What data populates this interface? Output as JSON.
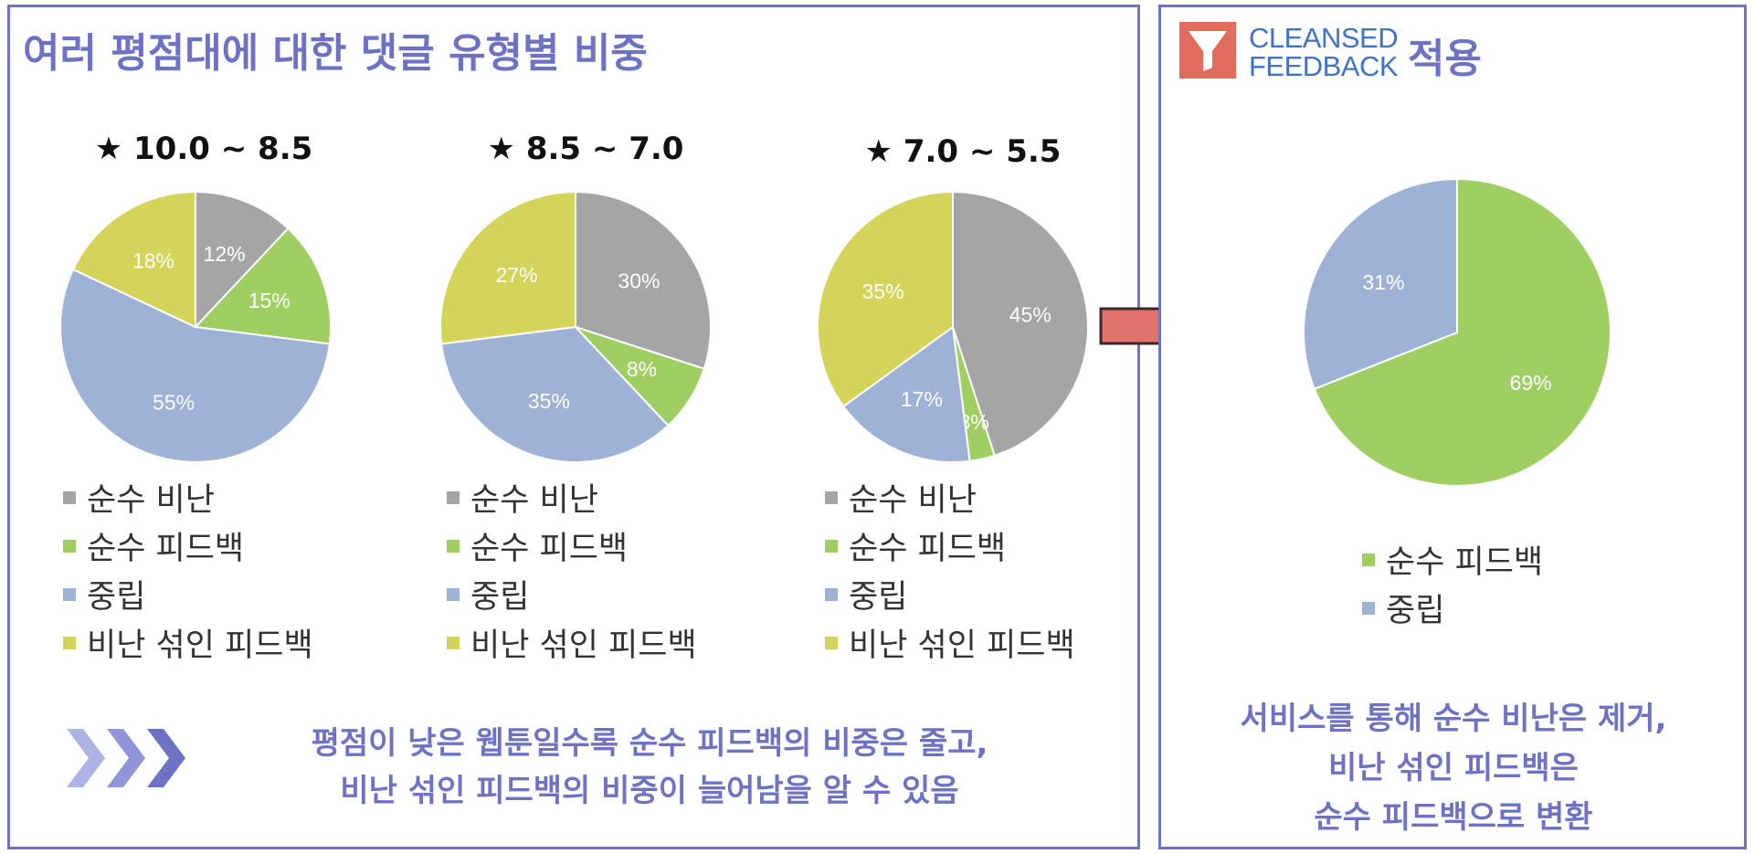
{
  "left_title": "여러 평점대에 대한 댓글 유형별 비중",
  "right_header": {
    "logo_line1": "CLEANSED",
    "logo_line2": "FEEDBACK",
    "title": "적용"
  },
  "colors": {
    "accent": "#6d72c3",
    "arrow": "#e0726a",
    "logo": "#e36b5d"
  },
  "icons": {
    "arrow": "right-arrow-icon",
    "chevrons": "chevron-triple-icon",
    "logo": "funnel-icon"
  },
  "legend_labels": [
    "순수 비난",
    "순수 피드백",
    "중립",
    "비난 섞인 피드백"
  ],
  "chart_data": [
    {
      "type": "pie",
      "title": "★ 10.0 ~ 8.5",
      "slices": [
        {
          "label": "순수 비난",
          "value": 12,
          "color": "#a5a5a5"
        },
        {
          "label": "순수 피드백",
          "value": 15,
          "color": "#9fcf63"
        },
        {
          "label": "중립",
          "value": 55,
          "color": "#9eb2d6"
        },
        {
          "label": "비난 섞인 피드백",
          "value": 18,
          "color": "#d4d35a"
        }
      ]
    },
    {
      "type": "pie",
      "title": "★ 8.5 ~ 7.0",
      "slices": [
        {
          "label": "순수 비난",
          "value": 30,
          "color": "#a5a5a5"
        },
        {
          "label": "순수 피드백",
          "value": 8,
          "color": "#9fcf63"
        },
        {
          "label": "중립",
          "value": 35,
          "color": "#9eb2d6"
        },
        {
          "label": "비난 섞인 피드백",
          "value": 27,
          "color": "#d4d35a"
        }
      ]
    },
    {
      "type": "pie",
      "title": "★ 7.0 ~ 5.5",
      "slices": [
        {
          "label": "순수 비난",
          "value": 45,
          "color": "#a5a5a5"
        },
        {
          "label": "순수 피드백",
          "value": 3,
          "color": "#9fcf63"
        },
        {
          "label": "중립",
          "value": 17,
          "color": "#9eb2d6"
        },
        {
          "label": "비난 섞인 피드백",
          "value": 35,
          "color": "#d4d35a"
        }
      ]
    },
    {
      "type": "pie",
      "title": "",
      "slices": [
        {
          "label": "순수 피드백",
          "value": 69,
          "color": "#9fcf63"
        },
        {
          "label": "중립",
          "value": 31,
          "color": "#9eb2d6"
        }
      ]
    }
  ],
  "left_conclusion": [
    "평점이 낮은 웹툰일수록 순수 피드백의 비중은 줄고,",
    "비난 섞인 피드백의 비중이 늘어남을 알 수 있음"
  ],
  "right_conclusion": [
    "서비스를 통해 순수 비난은 제거,",
    "비난 섞인 피드백은",
    "순수 피드백으로 변환"
  ]
}
